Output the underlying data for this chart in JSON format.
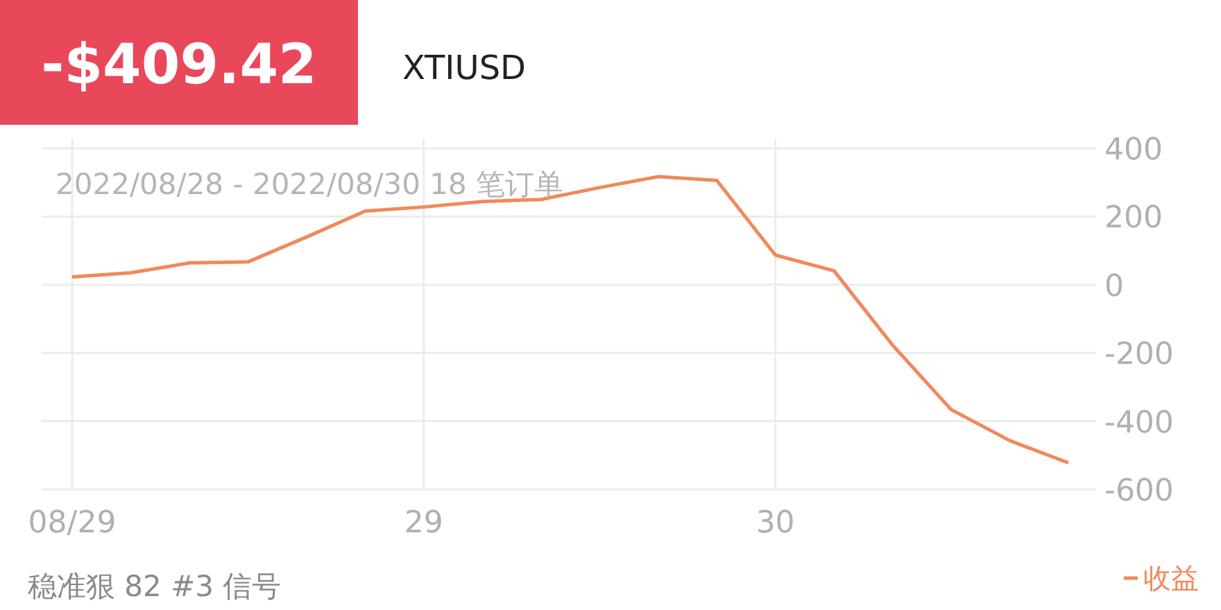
{
  "chart_data": {
    "type": "line",
    "title": "-$409.42",
    "subtitle": "XTIUSD",
    "categories": [
      "08/29",
      null,
      null,
      null,
      null,
      null,
      "29",
      null,
      null,
      null,
      null,
      null,
      "30",
      null,
      null,
      null,
      null,
      null
    ],
    "series": [
      {
        "name": "收益",
        "color": "#f0895c",
        "values": [
          23,
          35,
          64,
          67,
          140,
          216,
          228,
          244,
          250,
          285,
          317,
          306,
          87,
          41,
          -177,
          -366,
          -457,
          -522
        ]
      }
    ],
    "ylim": [
      -600,
      400
    ],
    "yticks": [
      -600,
      -400,
      -200,
      0,
      200,
      400
    ],
    "grid": true,
    "legend": "bottom right",
    "marker": "none",
    "line_style": "solid",
    "annotations": [
      "2022/08/28 - 2022/08/30 18 笔订单",
      "稳准狠 82 #3 信号"
    ]
  }
}
